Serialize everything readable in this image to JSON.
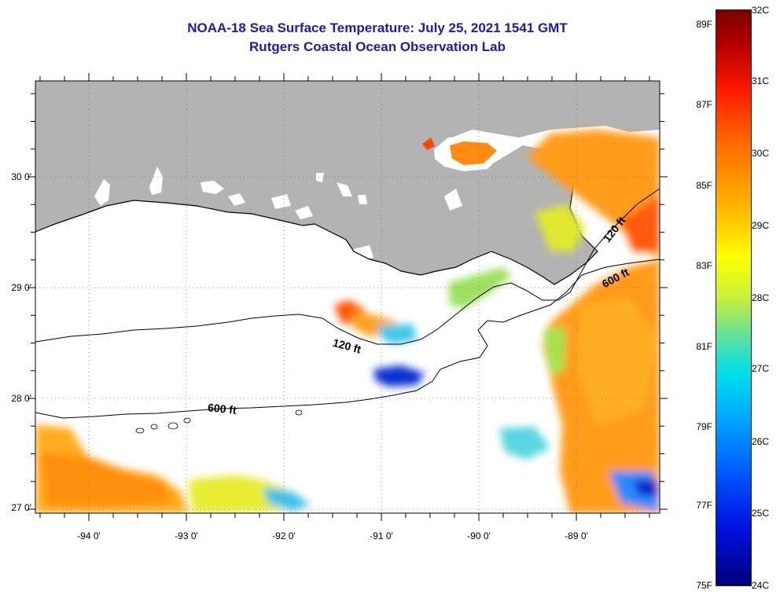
{
  "titles": {
    "line1": "NOAA-18 Sea Surface Temperature:  July 25, 2021 1541 GMT",
    "line2": "Rutgers Coastal Ocean Observation Lab"
  },
  "map": {
    "longitudes": [
      "-94 0'",
      "-93 0'",
      "-92 0'",
      "-91 0'",
      "-90 0'",
      "-89 0'"
    ],
    "latitudes": [
      "30 0'",
      "29 0'",
      "28 0'",
      "27 0'"
    ],
    "contours": [
      "120 ft",
      "600 ft",
      "120 ft",
      "600 ft"
    ],
    "colors": {
      "land": "#b3b3b3",
      "ocean_no_data": "#ffffff",
      "title": "#1b1bb0"
    }
  },
  "colorbar": {
    "fahrenheit": [
      "89F",
      "87F",
      "85F",
      "83F",
      "81F",
      "79F",
      "77F",
      "75F"
    ],
    "celsius": [
      "32C",
      "31C",
      "30C",
      "29C",
      "28C",
      "27C",
      "26C",
      "25C",
      "24C"
    ]
  }
}
